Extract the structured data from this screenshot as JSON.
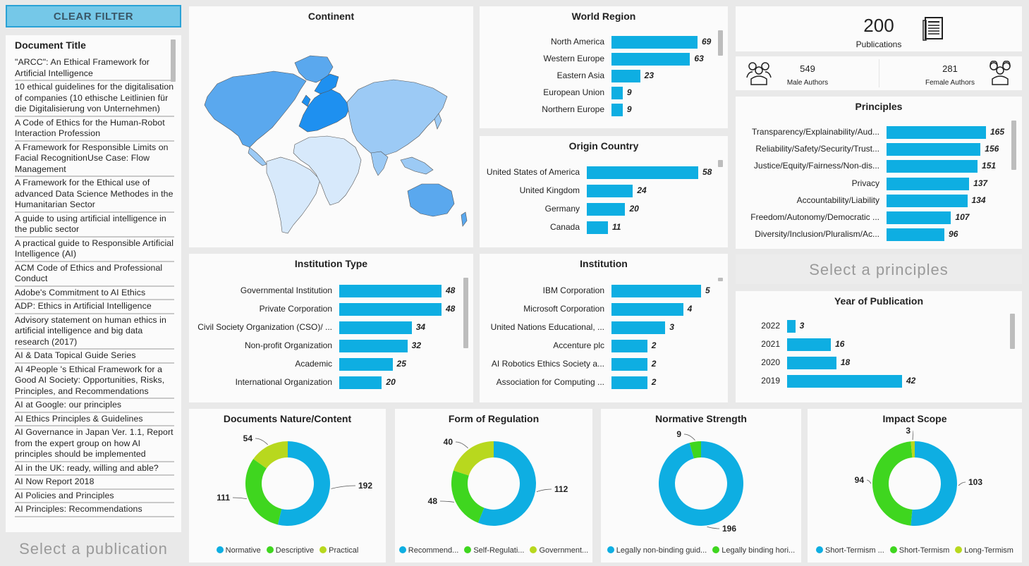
{
  "clear_filter": "CLEAR FILTER",
  "documents": {
    "title": "Document Title",
    "items": [
      "\"ARCC\": An Ethical Framework for Artificial Intelligence",
      "10 ethical guidelines for the digitalisation of companies (10 ethische Leitlinien für die Digitalisierung von Unternehmen)",
      "A Code of Ethics for the Human-Robot Interaction Profession",
      "A Framework for Responsible Limits on Facial RecognitionUse Case: Flow Management",
      "A Framework for the Ethical use of advanced Data Science Methodes in the Humanitarian Sector",
      "A guide to using artificial intelligence in the public sector",
      "A practical guide to Responsible Artificial Intelligence (AI)",
      "ACM Code of Ethics and Professional Conduct",
      "Adobe's Commitment to AI Ethics",
      "ADP: Ethics in Artificial Intelligence",
      "Advisory statement on human ethics in artificial intelligence and big data research (2017)",
      "AI & Data Topical Guide Series",
      "AI 4People 's Ethical Framework for a Good AI Society: Opportunities, Risks, Principles, and Recommendations",
      "AI at Google: our principles",
      "AI Ethics Principles & Guidelines",
      "AI Governance in Japan Ver. 1.1, Report from the expert group on how AI principles should be implemented",
      "AI in the UK: ready, willing and able?",
      "AI Now Report 2018",
      "AI Policies and Principles",
      "AI Principles: Recommendations"
    ],
    "select_hint": "Select a publication"
  },
  "continent": {
    "title": "Continent"
  },
  "world_region": {
    "title": "World Region",
    "items": [
      {
        "label": "North America",
        "value": 69
      },
      {
        "label": "Western Europe",
        "value": 63
      },
      {
        "label": "Eastern Asia",
        "value": 23
      },
      {
        "label": "European Union",
        "value": 9
      },
      {
        "label": "Northern Europe",
        "value": 9
      }
    ]
  },
  "origin_country": {
    "title": "Origin Country",
    "items": [
      {
        "label": "United States of America",
        "value": 58
      },
      {
        "label": "United Kingdom",
        "value": 24
      },
      {
        "label": "Germany",
        "value": 20
      },
      {
        "label": "Canada",
        "value": 11
      }
    ]
  },
  "kpi": {
    "publications_value": "200",
    "publications_label": "Publications",
    "male_value": "549",
    "male_label": "Male Authors",
    "female_value": "281",
    "female_label": "Female Authors"
  },
  "principles": {
    "title": "Principles",
    "items": [
      {
        "label": "Transparency/Explainability/Aud...",
        "value": 165
      },
      {
        "label": "Reliability/Safety/Security/Trust...",
        "value": 156
      },
      {
        "label": "Justice/Equity/Fairness/Non-dis...",
        "value": 151
      },
      {
        "label": "Privacy",
        "value": 137
      },
      {
        "label": "Accountability/Liability",
        "value": 134
      },
      {
        "label": "Freedom/Autonomy/Democratic ...",
        "value": 107
      },
      {
        "label": "Diversity/Inclusion/Pluralism/Ac...",
        "value": 96
      }
    ],
    "select_hint": "Select a principles"
  },
  "institution_type": {
    "title": "Institution Type",
    "items": [
      {
        "label": "Governmental Institution",
        "value": 48
      },
      {
        "label": "Private Corporation",
        "value": 48
      },
      {
        "label": "Civil Society Organization (CSO)/ ...",
        "value": 34
      },
      {
        "label": "Non-profit Organization",
        "value": 32
      },
      {
        "label": "Academic",
        "value": 25
      },
      {
        "label": "International Organization",
        "value": 20
      }
    ]
  },
  "institution": {
    "title": "Institution",
    "items": [
      {
        "label": "IBM Corporation",
        "value": 5
      },
      {
        "label": "Microsoft Corporation",
        "value": 4
      },
      {
        "label": "United Nations Educational, ...",
        "value": 3
      },
      {
        "label": "Accenture plc",
        "value": 2
      },
      {
        "label": "AI Robotics Ethics Society a...",
        "value": 2
      },
      {
        "label": "Association for Computing ...",
        "value": 2
      }
    ]
  },
  "year": {
    "title": "Year of Publication",
    "items": [
      {
        "label": "2022",
        "value": 3
      },
      {
        "label": "2021",
        "value": 16
      },
      {
        "label": "2020",
        "value": 18
      },
      {
        "label": "2019",
        "value": 42
      }
    ]
  },
  "colors": {
    "bar": "#0eaee2",
    "blue": "#0eaee2",
    "green": "#3fd61f",
    "lime": "#b8d81e"
  },
  "donuts": [
    {
      "title": "Documents Nature/Content",
      "slices": [
        {
          "label": "Normative",
          "value": 192,
          "color": "#0eaee2"
        },
        {
          "label": "Descriptive",
          "value": 111,
          "color": "#3fd61f"
        },
        {
          "label": "Practical",
          "value": 54,
          "color": "#b8d81e"
        }
      ]
    },
    {
      "title": "Form of Regulation",
      "slices": [
        {
          "label": "Recommend...",
          "value": 112,
          "color": "#0eaee2"
        },
        {
          "label": "Self-Regulati...",
          "value": 48,
          "color": "#3fd61f"
        },
        {
          "label": "Government...",
          "value": 40,
          "color": "#b8d81e"
        }
      ]
    },
    {
      "title": "Normative Strength",
      "slices": [
        {
          "label": "Legally non-binding guid...",
          "value": 196,
          "color": "#0eaee2"
        },
        {
          "label": "Legally binding hori...",
          "value": 9,
          "color": "#3fd61f"
        }
      ]
    },
    {
      "title": "Impact Scope",
      "slices": [
        {
          "label": "Short-Termism ...",
          "value": 103,
          "color": "#0eaee2"
        },
        {
          "label": "Short-Termism",
          "value": 94,
          "color": "#3fd61f"
        },
        {
          "label": "Long-Termism",
          "value": 3,
          "color": "#b8d81e"
        }
      ]
    }
  ]
}
